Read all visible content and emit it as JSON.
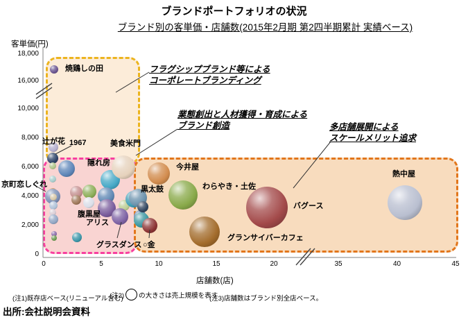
{
  "title": "ブランドポートフォリオの状況",
  "subtitle": "ブランド別の客単価・店舗数(2015年2月期 第2四半期累計 実績ベース)",
  "source": "出所:会社説明会資料",
  "notes": {
    "n1": "(注1)既存店ベース(リニューアル含む)",
    "n2_prefix": "(注2)",
    "n2_suffix": "の大きさは売上規模を表す",
    "n3": "(注3)店舗数はブランド別全店ベース。"
  },
  "chart_data": {
    "type": "scatter",
    "title": "ブランド別の客単価・店舗数(2015年2月期 第2四半期累計 実績ベース)",
    "xlabel": "店舗数(店)",
    "ylabel": "客単価(円)",
    "xlim": [
      0,
      45
    ],
    "ylim": [
      0,
      18000
    ],
    "grid": false,
    "axis_breaks": {
      "x_between": [
        20,
        35
      ],
      "y_between": [
        10000,
        16000
      ]
    },
    "x_ticks": [
      {
        "v": 0,
        "label": "0"
      },
      {
        "v": 5,
        "label": "5"
      },
      {
        "v": 10,
        "label": "10"
      },
      {
        "v": 15,
        "label": "15"
      },
      {
        "v": 20,
        "label": "20"
      },
      {
        "v": 35,
        "label": "35"
      },
      {
        "v": 40,
        "label": "40"
      },
      {
        "v": 45,
        "label": "45"
      }
    ],
    "y_ticks": [
      {
        "v": 18000,
        "label": "18,000"
      },
      {
        "v": 16000,
        "label": "16,000"
      },
      {
        "v": 10000,
        "label": "10,000"
      },
      {
        "v": 8000,
        "label": "8,000"
      },
      {
        "v": 6000,
        "label": "6,000"
      },
      {
        "v": 4000,
        "label": "4,000"
      },
      {
        "v": 2000,
        "label": "2,000"
      },
      {
        "v": 0,
        "label": "0"
      }
    ],
    "zones": [
      {
        "id": "flagship",
        "border": "#ecb41e",
        "fill": "#fcecd9"
      },
      {
        "id": "creation",
        "border": "#f83f9f",
        "fill": "#f9d4d2"
      },
      {
        "id": "scale",
        "border": "#e2761b",
        "fill": "#f8dcbe"
      }
    ],
    "annotations": [
      {
        "id": "flagship",
        "lines": [
          "フラグシップブランド等による",
          "コーポレートブランディング"
        ]
      },
      {
        "id": "creation",
        "lines": [
          "業態創出と人材獲得・育成による",
          "ブランド創造"
        ]
      },
      {
        "id": "scale",
        "lines": [
          "多店舗展開による",
          "スケールメリット追求"
        ]
      }
    ],
    "size_legend": "の大きさは売上規模を表す",
    "bubbles": [
      {
        "id": "shinoda",
        "name": "焼鶏しの田",
        "stores": 0.9,
        "spend": 16900,
        "r": 6,
        "color": "#6a5490"
      },
      {
        "id": "tsujigahana",
        "name": "辻が花",
        "stores": 0.85,
        "spend": 7400,
        "r": 7,
        "color": "#b4aecd"
      },
      {
        "id": "b1967",
        "name": "1967",
        "stores": 0.8,
        "spend": 6600,
        "r": 8,
        "color": "#2e4468"
      },
      {
        "id": "u1",
        "name": "",
        "stores": 0.8,
        "spend": 6100,
        "r": 5,
        "color": "#aec48a"
      },
      {
        "id": "u2",
        "name": "",
        "stores": 2.0,
        "spend": 5900,
        "r": 12,
        "color": "#5e86b8"
      },
      {
        "id": "u3",
        "name": "",
        "stores": 0.8,
        "spend": 5200,
        "r": 5,
        "color": "#a8cccc"
      },
      {
        "id": "u4",
        "name": "",
        "stores": 0.8,
        "spend": 4300,
        "r": 6,
        "color": "#cc8844"
      },
      {
        "id": "kyomachi",
        "name": "京町恋しぐれ",
        "stores": 0.8,
        "spend": 4000,
        "r": 11,
        "color": "#7e90b6"
      },
      {
        "id": "u5",
        "name": "",
        "stores": 0.85,
        "spend": 3950,
        "r": 5,
        "color": "#d8c8a8"
      },
      {
        "id": "u6",
        "name": "",
        "stores": 0.85,
        "spend": 3400,
        "r": 6,
        "color": "#b0c2d8"
      },
      {
        "id": "u7",
        "name": "",
        "stores": 0.8,
        "spend": 2900,
        "r": 5,
        "color": "#d8ccd4"
      },
      {
        "id": "u8",
        "name": "",
        "stores": 0.85,
        "spend": 2450,
        "r": 7,
        "color": "#92a6c4"
      },
      {
        "id": "u9",
        "name": "",
        "stores": 0.9,
        "spend": 1450,
        "r": 4,
        "color": "#8a6aa8"
      },
      {
        "id": "u10",
        "name": "",
        "stores": 0.9,
        "spend": 1150,
        "r": 4,
        "color": "#6a9a50"
      },
      {
        "id": "u11",
        "name": "",
        "stores": 2.9,
        "spend": 1200,
        "r": 7,
        "color": "#3c96a8"
      },
      {
        "id": "haraguroya",
        "name": "腹黒屋",
        "stores": 2.8,
        "spend": 4300,
        "r": 9,
        "color": "#c49090"
      },
      {
        "id": "u12",
        "name": "",
        "stores": 2.8,
        "spend": 3750,
        "r": 7,
        "color": "#a0785a"
      },
      {
        "id": "u13",
        "name": "",
        "stores": 4.0,
        "spend": 4350,
        "r": 10,
        "color": "#8cae58"
      },
      {
        "id": "alice",
        "name": "アリス",
        "stores": 3.9,
        "spend": 3550,
        "r": 8,
        "color": "#dadee8"
      },
      {
        "id": "kakurebo",
        "name": "隠れ房",
        "stores": 5.8,
        "spend": 5150,
        "r": 14,
        "color": "#46a8c6"
      },
      {
        "id": "u14",
        "name": "",
        "stores": 5.4,
        "spend": 4050,
        "r": 12,
        "color": "#6088b4"
      },
      {
        "id": "bishoku",
        "name": "美食米門",
        "stores": 6.9,
        "spend": 6000,
        "r": 17,
        "color": "#e6d2bc"
      },
      {
        "id": "u15",
        "name": "",
        "stores": 5.5,
        "spend": 3200,
        "r": 13,
        "color": "#7a5c9c"
      },
      {
        "id": "u16",
        "name": "",
        "stores": 7.0,
        "spend": 3400,
        "r": 8,
        "color": "#bcce94"
      },
      {
        "id": "u17",
        "name": "",
        "stores": 7.8,
        "spend": 3800,
        "r": 12,
        "color": "#3e9cb4"
      },
      {
        "id": "glassdance",
        "name": "グラスダンス",
        "stores": 6.6,
        "spend": 2600,
        "r": 12,
        "color": "#7e62a4"
      },
      {
        "id": "u18",
        "name": "",
        "stores": 8.4,
        "spend": 2600,
        "r": 9,
        "color": "#5878a8"
      },
      {
        "id": "kurodaiko",
        "name": "黒太鼓",
        "stores": 8.2,
        "spend": 3900,
        "r": 13,
        "color": "#6c93ad"
      },
      {
        "id": "u19",
        "name": "",
        "stores": 8.6,
        "spend": 3300,
        "r": 8,
        "color": "#31455f"
      },
      {
        "id": "u20",
        "name": "",
        "stores": 8.5,
        "spend": 2400,
        "r": 11,
        "color": "#3a96a0"
      },
      {
        "id": "marukin",
        "name": "○金",
        "stores": 9.2,
        "spend": 2000,
        "r": 11,
        "color": "#8c3434"
      },
      {
        "id": "imaiya",
        "name": "今井屋",
        "stores": 10.0,
        "spend": 5550,
        "r": 16,
        "color": "#d28c4e"
      },
      {
        "id": "warayaki",
        "name": "わらやき・土佐",
        "stores": 12.1,
        "spend": 4100,
        "r": 21,
        "color": "#89a94a"
      },
      {
        "id": "grancyber",
        "name": "グランサイバーカフェ",
        "stores": 14.0,
        "spend": 1550,
        "r": 22,
        "color": "#a36c2c"
      },
      {
        "id": "bagus",
        "name": "バグース",
        "stores": 19.4,
        "spend": 3250,
        "r": 30,
        "color": "#a34a4a"
      },
      {
        "id": "necchuya",
        "name": "熱中屋",
        "stores": 40.7,
        "spend": 3550,
        "r": 25,
        "color": "#b9bfd0"
      }
    ]
  }
}
